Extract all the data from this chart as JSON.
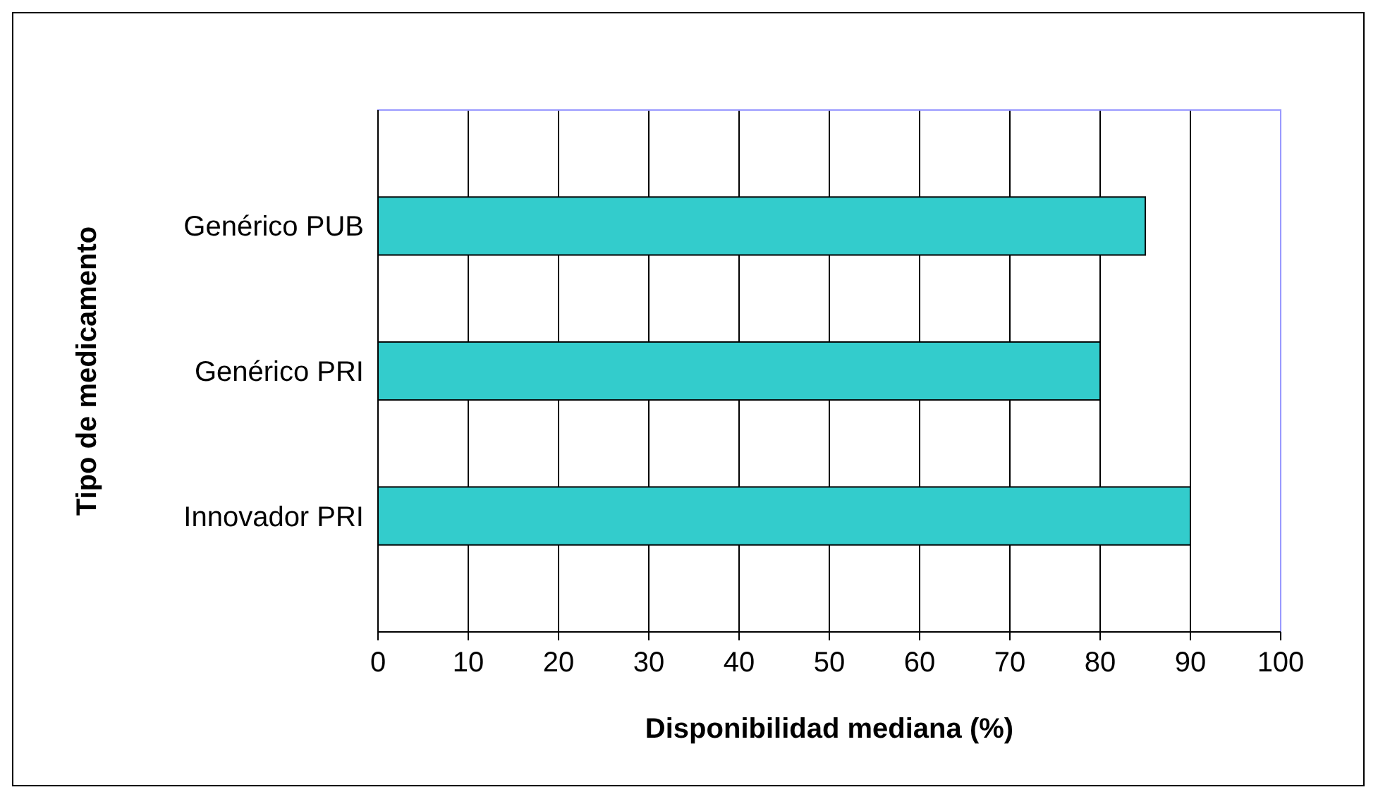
{
  "chart_data": {
    "type": "bar",
    "orientation": "horizontal",
    "xlabel": "Disponibilidad mediana (%)",
    "ylabel": "Tipo de medicamento",
    "categories": [
      "Genérico PUB",
      "Genérico PRI",
      "Innovador PRI"
    ],
    "values": [
      85,
      80,
      90
    ],
    "color": "#33cccc",
    "xlim": [
      0,
      100
    ],
    "xticks": [
      0,
      10,
      20,
      30,
      40,
      50,
      60,
      70,
      80,
      90,
      100
    ],
    "grid": "x"
  }
}
